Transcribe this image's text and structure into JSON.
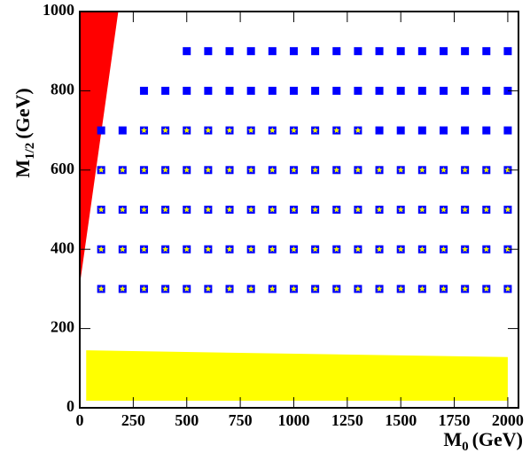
{
  "chart_data": {
    "type": "scatter",
    "x_label": {
      "main": "M",
      "sub": "0",
      "unit": "(GeV)"
    },
    "y_label": {
      "main": "M",
      "sub": "1/2",
      "unit": "(GeV)"
    },
    "xlim": [
      0,
      2050
    ],
    "ylim": [
      0,
      1000
    ],
    "xticks": [
      0,
      250,
      500,
      750,
      1000,
      1250,
      1500,
      1750,
      2000
    ],
    "yticks": [
      0,
      200,
      400,
      600,
      800,
      1000
    ],
    "regions": [
      {
        "color": "#ff0000",
        "x": [
          0,
          0,
          180
        ],
        "y": [
          310,
          1000,
          1000
        ]
      },
      {
        "color": "#ffff00",
        "x": [
          30,
          30,
          2000,
          2000
        ],
        "y": [
          18,
          145,
          128,
          18
        ]
      }
    ],
    "series": [
      {
        "marker": "square",
        "color": "#0000ff",
        "y": 300,
        "x": [
          100,
          200,
          300,
          400,
          500,
          600,
          700,
          800,
          900,
          1000,
          1100,
          1200,
          1300,
          1400,
          1500,
          1600,
          1700,
          1800,
          1900,
          2000
        ]
      },
      {
        "marker": "square",
        "color": "#0000ff",
        "y": 400,
        "x": [
          100,
          200,
          300,
          400,
          500,
          600,
          700,
          800,
          900,
          1000,
          1100,
          1200,
          1300,
          1400,
          1500,
          1600,
          1700,
          1800,
          1900,
          2000
        ]
      },
      {
        "marker": "square",
        "color": "#0000ff",
        "y": 500,
        "x": [
          100,
          200,
          300,
          400,
          500,
          600,
          700,
          800,
          900,
          1000,
          1100,
          1200,
          1300,
          1400,
          1500,
          1600,
          1700,
          1800,
          1900,
          2000
        ]
      },
      {
        "marker": "square",
        "color": "#0000ff",
        "y": 600,
        "x": [
          100,
          200,
          300,
          400,
          500,
          600,
          700,
          800,
          900,
          1000,
          1100,
          1200,
          1300,
          1400,
          1500,
          1600,
          1700,
          1800,
          1900,
          2000
        ]
      },
      {
        "marker": "square",
        "color": "#0000ff",
        "y": 700,
        "x": [
          100,
          200,
          300,
          400,
          500,
          600,
          700,
          800,
          900,
          1000,
          1100,
          1200,
          1300,
          1400,
          1500,
          1600,
          1700,
          1800,
          1900,
          2000
        ]
      },
      {
        "marker": "square",
        "color": "#0000ff",
        "y": 800,
        "x": [
          300,
          400,
          500,
          600,
          700,
          800,
          900,
          1000,
          1100,
          1200,
          1300,
          1400,
          1500,
          1600,
          1700,
          1800,
          1900,
          2000
        ]
      },
      {
        "marker": "square",
        "color": "#0000ff",
        "y": 900,
        "x": [
          500,
          600,
          700,
          800,
          900,
          1000,
          1100,
          1200,
          1300,
          1400,
          1500,
          1600,
          1700,
          1800,
          1900,
          2000
        ]
      },
      {
        "marker": "star",
        "color": "#ffff00",
        "y": 300,
        "x": [
          100,
          200,
          300,
          400,
          500,
          600,
          700,
          800,
          900,
          1000,
          1100,
          1200,
          1300,
          1400,
          1500,
          1600,
          1700,
          1800,
          1900,
          2000
        ]
      },
      {
        "marker": "star",
        "color": "#ffff00",
        "y": 400,
        "x": [
          100,
          200,
          300,
          400,
          500,
          600,
          700,
          800,
          900,
          1000,
          1100,
          1200,
          1300,
          1400,
          1500,
          1600,
          1700,
          1800,
          1900,
          2000
        ]
      },
      {
        "marker": "star",
        "color": "#ffff00",
        "y": 500,
        "x": [
          100,
          200,
          300,
          400,
          500,
          600,
          700,
          800,
          900,
          1000,
          1100,
          1200,
          1300,
          1400,
          1500,
          1600,
          1700,
          1800,
          1900,
          2000
        ]
      },
      {
        "marker": "star",
        "color": "#ffff00",
        "y": 600,
        "x": [
          100,
          200,
          300,
          400,
          500,
          600,
          700,
          800,
          900,
          1000,
          1100,
          1200,
          1300,
          1400,
          1500,
          1600,
          1700,
          1800,
          1900,
          2000
        ]
      },
      {
        "marker": "star",
        "color": "#ffff00",
        "y": 700,
        "x": [
          300,
          400,
          500,
          600,
          700,
          800,
          900,
          1000,
          1100,
          1200,
          1300
        ]
      }
    ]
  }
}
